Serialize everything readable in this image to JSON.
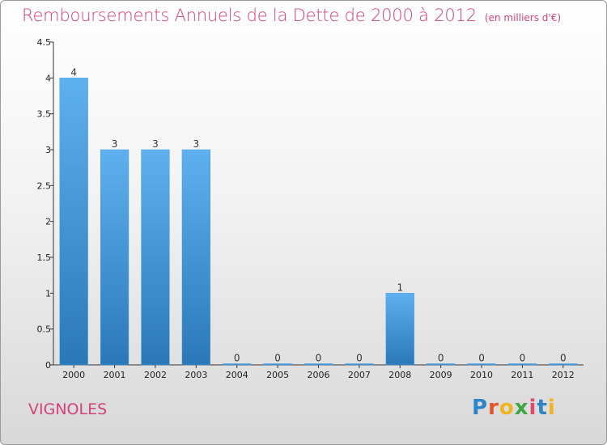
{
  "chart_data": {
    "type": "bar",
    "title": "Remboursements Annuels de la Dette de 2000 à 2012",
    "unit": "(en milliers d'€)",
    "categories": [
      "2000",
      "2001",
      "2002",
      "2003",
      "2004",
      "2005",
      "2006",
      "2007",
      "2008",
      "2009",
      "2010",
      "2011",
      "2012"
    ],
    "values": [
      4,
      3,
      3,
      3,
      0,
      0,
      0,
      0,
      1,
      0,
      0,
      0,
      0
    ],
    "yticks": [
      "0",
      "0.5",
      "1",
      "1.5",
      "2",
      "2.5",
      "3",
      "3.5",
      "4",
      "4.5"
    ],
    "ylim": [
      0,
      4.5
    ],
    "grid": false,
    "colors": {
      "bar_top": "#5fb0ee",
      "bar_bottom": "#2a78b8",
      "title": "#d4427a"
    }
  },
  "commune": "VIGNOLES",
  "logo": {
    "letters": [
      "P",
      "r",
      "o",
      "x",
      "i",
      "t",
      "i"
    ],
    "colors": [
      "#2e86c9",
      "#e2552c",
      "#f0b41c",
      "#3da843",
      "#e24b6d",
      "#2e86c9",
      "#f0b41c"
    ]
  }
}
